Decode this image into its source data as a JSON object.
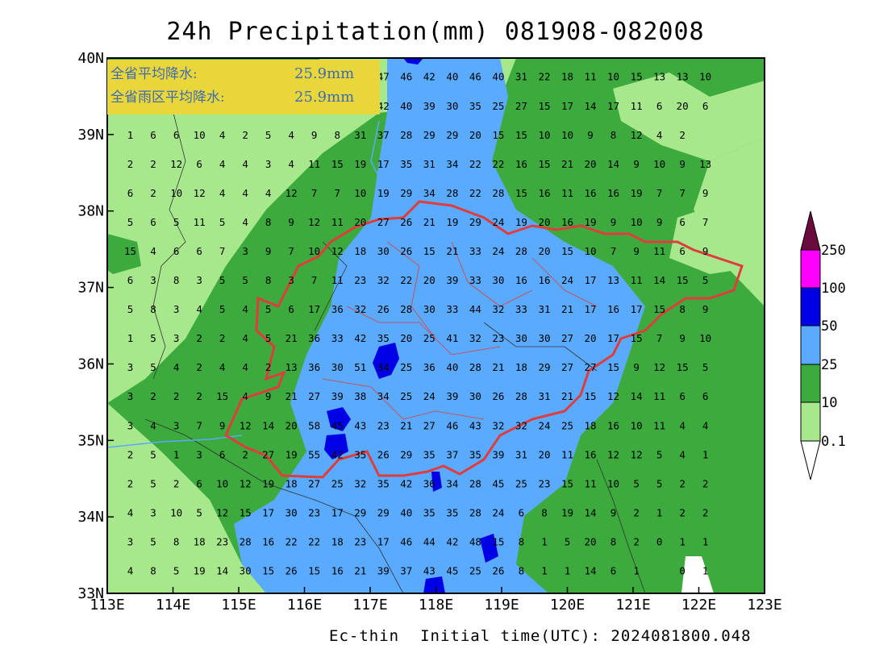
{
  "title": "24h Precipitation(mm) 081908-082008",
  "footer": {
    "model": "Ec-thin",
    "init_label": "Initial time(UTC): 2024081800.048"
  },
  "summary_box": {
    "province_avg_label": "全省平均降水:",
    "province_avg_value": "25.9mm",
    "rain_area_avg_label": "全省雨区平均降水:",
    "rain_area_avg_value": "25.9mm",
    "background_color": "#e8d63a"
  },
  "axes": {
    "x_ticks": [
      "113E",
      "114E",
      "115E",
      "116E",
      "117E",
      "118E",
      "119E",
      "120E",
      "121E",
      "122E",
      "123E"
    ],
    "y_ticks": [
      "40N",
      "39N",
      "38N",
      "37N",
      "36N",
      "35N",
      "34N",
      "33N"
    ],
    "lon_range": [
      113,
      123
    ],
    "lat_range": [
      33,
      40
    ]
  },
  "legend": {
    "labels": [
      "250",
      "100",
      "50",
      "25",
      "10",
      "0.1"
    ],
    "colors": {
      "over_250": "#6b0a3c",
      "100_250": "#ff00ff",
      "50_100": "#0000e6",
      "25_50": "#5aaaff",
      "10_25": "#3caa3c",
      "0.1_10": "#a8e88c",
      "under_0.1": "#ffffff"
    }
  },
  "station_grid": {
    "lon_start": 113.35,
    "lon_step": 0.35,
    "lat_start": 39.75,
    "lat_step": 0.38,
    "rows": [
      [
        "",
        "",
        "",
        "",
        "",
        "",
        "",
        "",
        "",
        "",
        "",
        "47",
        "46",
        "42",
        "40",
        "46",
        "40",
        "31",
        "22",
        "18",
        "11",
        "10",
        "15",
        "13",
        "13",
        "10"
      ],
      [
        "",
        "",
        "",
        "",
        "",
        "",
        "",
        "",
        "",
        "",
        "",
        "42",
        "40",
        "39",
        "30",
        "35",
        "25",
        "27",
        "15",
        "17",
        "14",
        "17",
        "11",
        "6",
        "20",
        "6"
      ],
      [
        "1",
        "6",
        "6",
        "10",
        "4",
        "2",
        "5",
        "4",
        "9",
        "8",
        "31",
        "37",
        "28",
        "29",
        "29",
        "20",
        "15",
        "15",
        "10",
        "10",
        "9",
        "8",
        "12",
        "4",
        "2",
        ""
      ],
      [
        "2",
        "2",
        "12",
        "6",
        "4",
        "4",
        "3",
        "4",
        "11",
        "15",
        "19",
        "17",
        "35",
        "31",
        "34",
        "22",
        "22",
        "16",
        "15",
        "21",
        "20",
        "14",
        "9",
        "10",
        "9",
        "13"
      ],
      [
        "6",
        "2",
        "10",
        "12",
        "4",
        "4",
        "4",
        "12",
        "7",
        "7",
        "10",
        "19",
        "29",
        "34",
        "28",
        "22",
        "28",
        "15",
        "16",
        "11",
        "16",
        "16",
        "19",
        "7",
        "7",
        "9"
      ],
      [
        "5",
        "6",
        "5",
        "11",
        "5",
        "4",
        "8",
        "9",
        "12",
        "11",
        "20",
        "27",
        "26",
        "21",
        "19",
        "29",
        "24",
        "19",
        "20",
        "16",
        "19",
        "9",
        "10",
        "9",
        "6",
        "7"
      ],
      [
        "15",
        "4",
        "6",
        "6",
        "7",
        "3",
        "9",
        "7",
        "10",
        "12",
        "18",
        "30",
        "26",
        "15",
        "21",
        "33",
        "24",
        "28",
        "20",
        "15",
        "10",
        "7",
        "9",
        "11",
        "6",
        "9"
      ],
      [
        "6",
        "3",
        "8",
        "3",
        "5",
        "5",
        "8",
        "3",
        "7",
        "11",
        "23",
        "32",
        "22",
        "20",
        "39",
        "33",
        "30",
        "16",
        "16",
        "24",
        "17",
        "13",
        "11",
        "14",
        "15",
        "5"
      ],
      [
        "5",
        "8",
        "3",
        "4",
        "5",
        "4",
        "5",
        "6",
        "17",
        "36",
        "32",
        "26",
        "28",
        "30",
        "33",
        "44",
        "32",
        "33",
        "31",
        "21",
        "17",
        "16",
        "17",
        "15",
        "8",
        "9"
      ],
      [
        "1",
        "5",
        "3",
        "2",
        "2",
        "4",
        "5",
        "21",
        "36",
        "33",
        "42",
        "35",
        "20",
        "25",
        "41",
        "32",
        "23",
        "30",
        "30",
        "27",
        "20",
        "17",
        "15",
        "7",
        "9",
        "10"
      ],
      [
        "3",
        "5",
        "4",
        "2",
        "4",
        "4",
        "2",
        "13",
        "36",
        "30",
        "51",
        "34",
        "25",
        "36",
        "40",
        "28",
        "21",
        "18",
        "29",
        "27",
        "27",
        "15",
        "9",
        "12",
        "15",
        "5"
      ],
      [
        "3",
        "2",
        "2",
        "2",
        "15",
        "4",
        "9",
        "21",
        "27",
        "39",
        "38",
        "34",
        "25",
        "24",
        "39",
        "30",
        "26",
        "28",
        "31",
        "21",
        "15",
        "12",
        "14",
        "11",
        "6",
        "6"
      ],
      [
        "3",
        "4",
        "3",
        "7",
        "9",
        "12",
        "14",
        "20",
        "58",
        "45",
        "43",
        "23",
        "21",
        "27",
        "46",
        "43",
        "32",
        "32",
        "24",
        "25",
        "18",
        "16",
        "10",
        "11",
        "4",
        "4"
      ],
      [
        "2",
        "5",
        "1",
        "3",
        "6",
        "2",
        "27",
        "19",
        "55",
        "42",
        "35",
        "26",
        "29",
        "35",
        "37",
        "35",
        "39",
        "31",
        "20",
        "11",
        "16",
        "12",
        "12",
        "5",
        "4",
        "1"
      ],
      [
        "2",
        "5",
        "2",
        "6",
        "10",
        "12",
        "19",
        "18",
        "27",
        "25",
        "32",
        "35",
        "42",
        "36",
        "34",
        "28",
        "45",
        "25",
        "23",
        "15",
        "11",
        "10",
        "5",
        "5",
        "2",
        "2"
      ],
      [
        "4",
        "3",
        "10",
        "5",
        "12",
        "15",
        "17",
        "30",
        "23",
        "17",
        "29",
        "29",
        "40",
        "35",
        "35",
        "28",
        "24",
        "6",
        "8",
        "19",
        "14",
        "9",
        "2",
        "1",
        "2",
        "2"
      ],
      [
        "3",
        "5",
        "8",
        "18",
        "23",
        "28",
        "16",
        "22",
        "22",
        "18",
        "23",
        "17",
        "46",
        "44",
        "42",
        "48",
        "15",
        "8",
        "1",
        "5",
        "20",
        "8",
        "2",
        "0",
        "1",
        "1"
      ],
      [
        "4",
        "8",
        "5",
        "19",
        "14",
        "30",
        "15",
        "26",
        "15",
        "16",
        "21",
        "39",
        "37",
        "43",
        "45",
        "25",
        "26",
        "8",
        "1",
        "1",
        "14",
        "6",
        "1",
        "",
        "0",
        "1"
      ]
    ]
  }
}
